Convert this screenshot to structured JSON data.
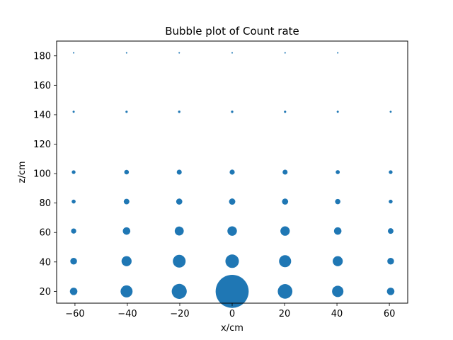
{
  "chart_data": {
    "type": "scatter",
    "title": "Bubble plot of Count rate",
    "xlabel": "x/cm",
    "ylabel": "z/cm",
    "xlim": [
      -67,
      67
    ],
    "ylim": [
      12,
      190
    ],
    "xticks": [
      -60,
      -40,
      -20,
      0,
      20,
      40,
      60
    ],
    "yticks": [
      20,
      40,
      60,
      80,
      100,
      120,
      140,
      160,
      180
    ],
    "grid": false,
    "marker_color": "#1f77b4",
    "size_encoding": "relative bubble area (count rate)",
    "points": [
      {
        "x": -60.5,
        "z": 182,
        "size": 0.03
      },
      {
        "x": -40.3,
        "z": 182,
        "size": 0.03
      },
      {
        "x": -20.2,
        "z": 182,
        "size": 0.03
      },
      {
        "x": 0,
        "z": 182,
        "size": 0.03
      },
      {
        "x": 20.2,
        "z": 182,
        "size": 0.03
      },
      {
        "x": 40.3,
        "z": 182,
        "size": 0.03
      },
      {
        "x": -60.5,
        "z": 142,
        "size": 0.08
      },
      {
        "x": -40.3,
        "z": 142,
        "size": 0.09
      },
      {
        "x": -20.2,
        "z": 142,
        "size": 0.1
      },
      {
        "x": 0,
        "z": 142,
        "size": 0.1
      },
      {
        "x": 20.2,
        "z": 142,
        "size": 0.09
      },
      {
        "x": 40.3,
        "z": 142,
        "size": 0.08
      },
      {
        "x": 60.5,
        "z": 142,
        "size": 0.07
      },
      {
        "x": -60.5,
        "z": 101,
        "size": 0.25
      },
      {
        "x": -40.3,
        "z": 101,
        "size": 0.38
      },
      {
        "x": -20.2,
        "z": 101,
        "size": 0.44
      },
      {
        "x": 0,
        "z": 101,
        "size": 0.46
      },
      {
        "x": 20.2,
        "z": 101,
        "size": 0.44
      },
      {
        "x": 40.3,
        "z": 101,
        "size": 0.3
      },
      {
        "x": 60.5,
        "z": 101,
        "size": 0.25
      },
      {
        "x": -60.5,
        "z": 81,
        "size": 0.28
      },
      {
        "x": -40.3,
        "z": 81,
        "size": 0.56
      },
      {
        "x": -20.2,
        "z": 81,
        "size": 0.66
      },
      {
        "x": 0,
        "z": 81,
        "size": 0.7
      },
      {
        "x": 20.2,
        "z": 81,
        "size": 0.66
      },
      {
        "x": 40.3,
        "z": 81,
        "size": 0.5
      },
      {
        "x": 60.5,
        "z": 81,
        "size": 0.26
      },
      {
        "x": -60.5,
        "z": 61,
        "size": 0.48
      },
      {
        "x": -40.3,
        "z": 61,
        "size": 1.0
      },
      {
        "x": -20.2,
        "z": 61,
        "size": 1.44
      },
      {
        "x": 0,
        "z": 61,
        "size": 1.6
      },
      {
        "x": 20.2,
        "z": 61,
        "size": 1.56
      },
      {
        "x": 40.3,
        "z": 61,
        "size": 1.0
      },
      {
        "x": 60.5,
        "z": 61,
        "size": 0.56
      },
      {
        "x": -60.5,
        "z": 40.5,
        "size": 0.8
      },
      {
        "x": -40.3,
        "z": 40.5,
        "size": 1.8
      },
      {
        "x": -20.2,
        "z": 40.5,
        "size": 2.9
      },
      {
        "x": 0,
        "z": 40.5,
        "size": 3.24
      },
      {
        "x": 20.2,
        "z": 40.5,
        "size": 2.6
      },
      {
        "x": 40.3,
        "z": 40.5,
        "size": 1.8
      },
      {
        "x": 60.5,
        "z": 40.5,
        "size": 0.8
      },
      {
        "x": -60.5,
        "z": 20,
        "size": 1.0
      },
      {
        "x": -40.3,
        "z": 20,
        "size": 2.56
      },
      {
        "x": -20.2,
        "z": 20,
        "size": 4.0
      },
      {
        "x": 0,
        "z": 20,
        "size": 19.4
      },
      {
        "x": 20.2,
        "z": 20,
        "size": 3.8
      },
      {
        "x": 40.3,
        "z": 20,
        "size": 2.3
      },
      {
        "x": 60.5,
        "z": 20,
        "size": 1.0
      }
    ]
  }
}
